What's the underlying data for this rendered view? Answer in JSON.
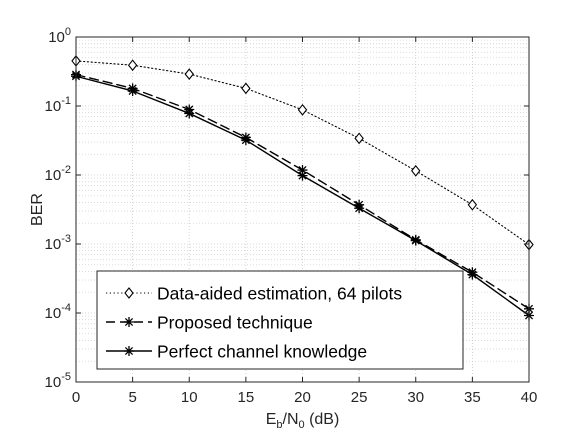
{
  "chart_data": {
    "type": "line",
    "x": [
      0,
      5,
      10,
      15,
      20,
      25,
      30,
      35,
      40
    ],
    "xlabel": "E_b/N_0 (dB)",
    "ylabel": "BER",
    "xlim": [
      0,
      40
    ],
    "ylim": [
      1e-05,
      1
    ],
    "yscale": "log",
    "grid": true,
    "minor_grid": true,
    "legend_position": "bottom-left",
    "x_ticks": [
      "0",
      "5",
      "10",
      "15",
      "20",
      "25",
      "30",
      "35",
      "40"
    ],
    "y_ticks": [
      {
        "base": "10",
        "exp": "0",
        "value": 1
      },
      {
        "base": "10",
        "exp": "-1",
        "value": 0.1
      },
      {
        "base": "10",
        "exp": "-2",
        "value": 0.01
      },
      {
        "base": "10",
        "exp": "-3",
        "value": 0.001
      },
      {
        "base": "10",
        "exp": "-4",
        "value": 0.0001
      },
      {
        "base": "10",
        "exp": "-5",
        "value": 1e-05
      }
    ],
    "series": [
      {
        "name": "Data-aided estimation, 64 pilots",
        "line_style": "dotted",
        "marker": "diamond",
        "values": [
          0.45,
          0.39,
          0.29,
          0.18,
          0.088,
          0.034,
          0.0115,
          0.0037,
          0.00098
        ]
      },
      {
        "name": "Proposed technique",
        "line_style": "dashed",
        "marker": "asterisk",
        "values": [
          0.285,
          0.18,
          0.089,
          0.035,
          0.0118,
          0.0037,
          0.00115,
          0.00039,
          0.000115
        ]
      },
      {
        "name": "Perfect channel knowledge",
        "line_style": "solid",
        "marker": "asterisk",
        "values": [
          0.27,
          0.165,
          0.078,
          0.032,
          0.0098,
          0.0033,
          0.00112,
          0.00036,
          9.2e-05
        ]
      }
    ]
  }
}
